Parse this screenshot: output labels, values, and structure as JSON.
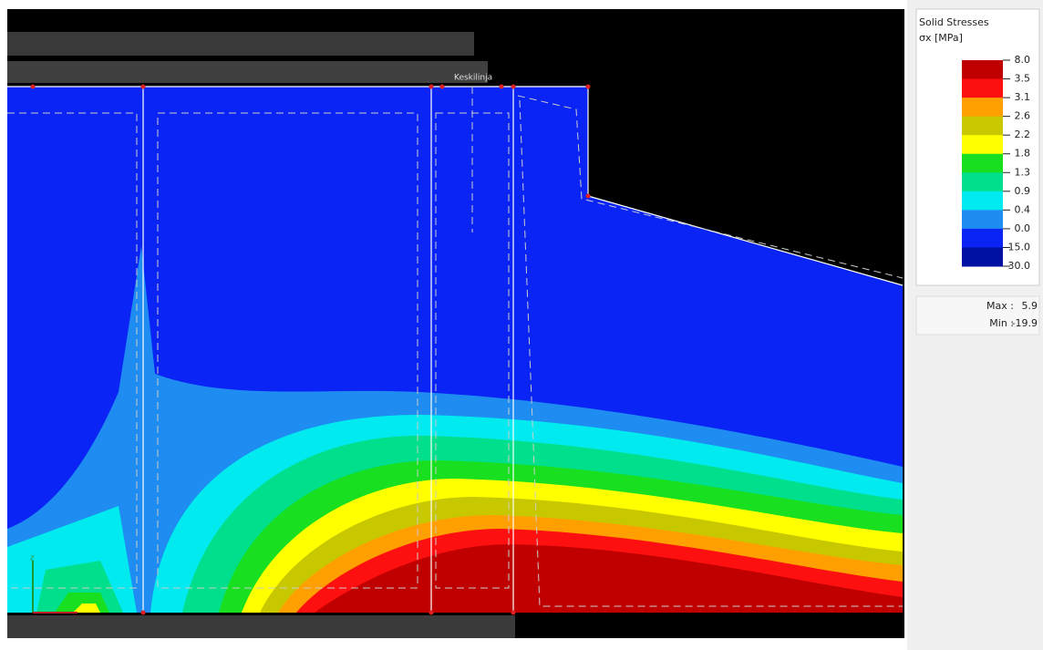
{
  "legend": {
    "title": "Solid Stresses",
    "unit": "σx [MPa]",
    "labels": [
      "8.0",
      "3.5",
      "3.1",
      "2.6",
      "2.2",
      "1.8",
      "1.3",
      "0.9",
      "0.4",
      "0.0",
      "-15.0",
      "-30.0"
    ],
    "colors": [
      "#c00000",
      "#ff1010",
      "#ffa000",
      "#c8c800",
      "#ffff00",
      "#18e020",
      "#00e08c",
      "#00eaf0",
      "#1e8cf0",
      "#0a24f5",
      "#0010a0"
    ]
  },
  "summary": {
    "max_label": "Max :",
    "max": "5.9",
    "min_label": "Min :",
    "min": "-19.9"
  },
  "viewport": {
    "line_label": "Keskilinja",
    "axis_label": "z"
  }
}
